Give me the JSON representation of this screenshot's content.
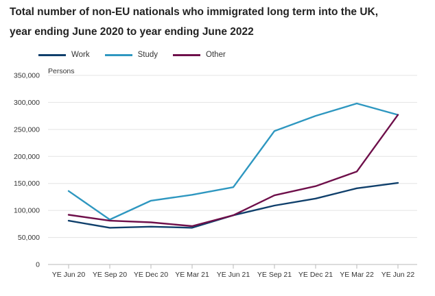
{
  "chart_data": {
    "type": "line",
    "title": "Total number of non-EU nationals who immigrated long term into the UK,",
    "subtitle": "year ending June 2020 to year ending June 2022",
    "ylabel": "Persons",
    "xlabel": "",
    "categories": [
      "YE Jun 20",
      "YE Sep 20",
      "YE Dec 20",
      "YE Mar 21",
      "YE Jun 21",
      "YE Sep 21",
      "YE Dec 21",
      "YE Mar 22",
      "YE Jun 22"
    ],
    "ylim": [
      0,
      350000
    ],
    "yticks": [
      "0",
      "50,000",
      "100,000",
      "150,000",
      "200,000",
      "250,000",
      "300,000",
      "350,000"
    ],
    "ytick_values": [
      0,
      50000,
      100000,
      150000,
      200000,
      250000,
      300000,
      350000
    ],
    "grid": true,
    "legend_position": "top-left",
    "series": [
      {
        "name": "Work",
        "color": "#0f3f6b",
        "values": [
          81000,
          68000,
          70000,
          68000,
          91000,
          109000,
          122000,
          141000,
          151000
        ]
      },
      {
        "name": "Study",
        "color": "#2e97c0",
        "values": [
          136000,
          83000,
          118000,
          129000,
          143000,
          247000,
          275000,
          298000,
          277000
        ]
      },
      {
        "name": "Other",
        "color": "#6e0f4a",
        "values": [
          92000,
          81000,
          78000,
          71000,
          91000,
          128000,
          145000,
          172000,
          277000
        ]
      }
    ]
  }
}
